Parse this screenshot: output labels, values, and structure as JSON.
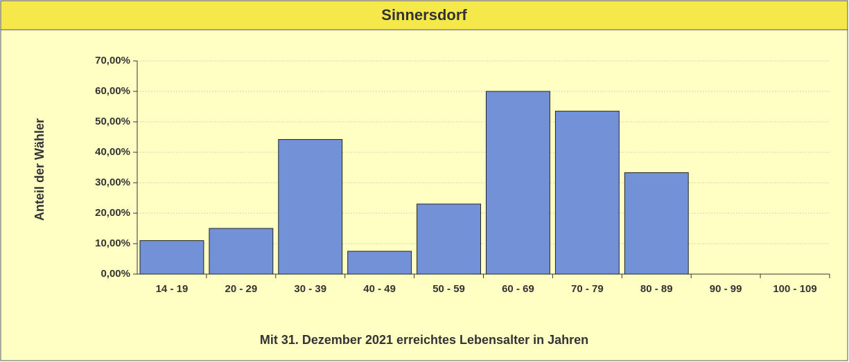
{
  "chart_data": {
    "type": "bar",
    "title": "Sinnersdorf",
    "x_label": "Mit 31. Dezember 2021 erreichtes Lebensalter in Jahren",
    "y_label": "Anteil der Wähler",
    "categories": [
      "14 - 19",
      "20 - 29",
      "30 - 39",
      "40 - 49",
      "50 - 59",
      "60 - 69",
      "70 - 79",
      "80 - 89",
      "90 - 99",
      "100 - 109"
    ],
    "values": [
      11,
      15,
      44.2,
      7.5,
      23,
      60,
      53.5,
      33.3,
      0,
      0
    ],
    "color": "#7391d6",
    "ylim": [
      0,
      70
    ],
    "yticks": [
      {
        "value": 0,
        "label": "0,00%"
      },
      {
        "value": 10,
        "label": "10,00%"
      },
      {
        "value": 20,
        "label": "20,00%"
      },
      {
        "value": 30,
        "label": "30,00%"
      },
      {
        "value": 40,
        "label": "40,00%"
      },
      {
        "value": 50,
        "label": "50,00%"
      },
      {
        "value": 60,
        "label": "60,00%"
      },
      {
        "value": 70,
        "label": "70,00%"
      }
    ],
    "grid": true
  }
}
